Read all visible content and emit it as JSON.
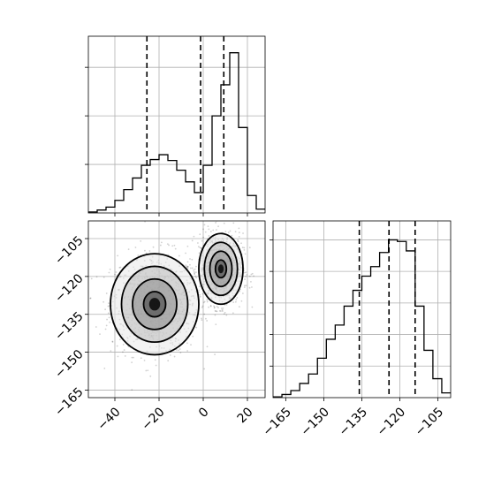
{
  "chart_data": [
    {
      "type": "histogram",
      "panel": "top-left",
      "variable_index": 0,
      "x_range": [
        -52,
        28
      ],
      "bins": [
        -52.0,
        -48.0,
        -44.0,
        -40.0,
        -36.0,
        -32.0,
        -28.0,
        -24.0,
        -20.0,
        -16.0,
        -12.0,
        -8.0,
        -4.0,
        0.0,
        4.0,
        8.0,
        12.0,
        16.0,
        20.0,
        24.0,
        28.0
      ],
      "counts": [
        0.01,
        0.03,
        0.06,
        0.13,
        0.24,
        0.36,
        0.49,
        0.55,
        0.6,
        0.54,
        0.44,
        0.32,
        0.21,
        0.49,
        1.0,
        1.32,
        1.65,
        0.88,
        0.18,
        0.04
      ],
      "y_max": 1.82,
      "y_ticks": [
        0.5,
        1.0,
        1.5
      ],
      "quantile_lines": [
        -25.5,
        -1.2,
        9.3
      ],
      "grid": true
    },
    {
      "type": "histogram",
      "panel": "bottom-right",
      "variable_index": 1,
      "x_range": [
        -170,
        -100
      ],
      "x_ticks": [
        -165,
        -150,
        -135,
        -120,
        -105
      ],
      "bins": [
        -170.0,
        -166.5,
        -163.0,
        -159.5,
        -156.0,
        -152.5,
        -149.0,
        -145.5,
        -142.0,
        -138.5,
        -135.0,
        -131.5,
        -128.0,
        -124.5,
        -121.0,
        -117.5,
        -114.0,
        -110.5,
        -107.0,
        -103.5,
        -100.0
      ],
      "counts": [
        0.005,
        0.02,
        0.045,
        0.09,
        0.15,
        0.25,
        0.37,
        0.46,
        0.58,
        0.68,
        0.77,
        0.83,
        0.92,
        1.0,
        0.99,
        0.93,
        0.58,
        0.3,
        0.12,
        0.03
      ],
      "y_max": 1.12,
      "y_ticks": [
        0.2,
        0.4,
        0.6,
        0.8,
        1.0
      ],
      "quantile_lines": [
        -136.0,
        -124.3,
        -114.0
      ],
      "grid": true
    },
    {
      "type": "scatter-contour",
      "panel": "bottom-left",
      "xlim": [
        -52,
        28
      ],
      "ylim": [
        -168,
        -98
      ],
      "x_ticks": [
        -40,
        -20,
        0,
        20
      ],
      "y_ticks": [
        -105,
        -120,
        -135,
        -150,
        -165
      ],
      "clusters": [
        {
          "center": [
            -22,
            -131
          ],
          "sigma": [
            10,
            10
          ],
          "weight": 0.47
        },
        {
          "center": [
            8,
            -117
          ],
          "sigma": [
            5,
            7
          ],
          "weight": 0.53
        }
      ],
      "contour_levels_sigma": [
        0.5,
        1.0,
        1.5,
        2.0
      ],
      "grid": true
    }
  ]
}
